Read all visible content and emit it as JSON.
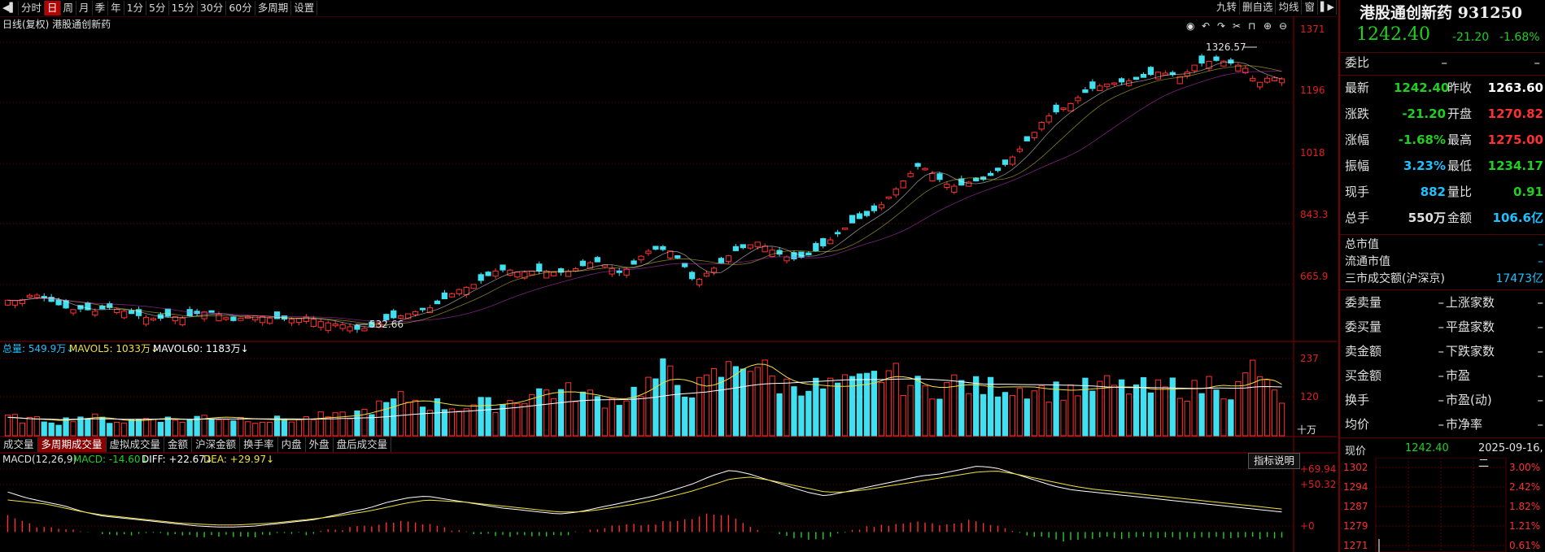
{
  "toolbar": {
    "left": [
      "分时",
      "日",
      "周",
      "月",
      "季",
      "年",
      "1分",
      "5分",
      "15分",
      "30分",
      "60分",
      "多周期",
      "设置"
    ],
    "active_index": 1,
    "right": [
      "九转",
      "删自选",
      "均线",
      "窗"
    ]
  },
  "main": {
    "title": "日线(复权)  港股通创新药",
    "price_axis": [
      "1371",
      "1196",
      "1018",
      "843.3",
      "665.9"
    ],
    "high_label": "1326.57",
    "low_label": "532.66"
  },
  "volume": {
    "legend_total": "总量: 549.9万↓",
    "legend_mavol5": "MAVOL5: 1033万↓",
    "legend_mavol60": "MAVOL60: 1183万↓",
    "axis": [
      "237",
      "120"
    ],
    "unit": "十万"
  },
  "subtabs": {
    "items": [
      "成交量",
      "多周期成交量",
      "虚拟成交量",
      "金额",
      "沪深金额",
      "换手率",
      "内盘",
      "外盘",
      "盘后成交量"
    ],
    "active_index": 1
  },
  "macd": {
    "name": "MACD(12,26,9)",
    "macd": "MACD: -14.60↓",
    "diff": "DIFF: +22.67↓",
    "dea": "DEA: +29.97↓",
    "axis": [
      "+69.94",
      "+50.32",
      "+0"
    ],
    "help": "指标说明"
  },
  "panel": {
    "title": "港股通创新药 931250",
    "price": "1242.40",
    "change": "-21.20",
    "pct": "-1.68%",
    "weibi_label": "委比",
    "weibi_val": "–",
    "weibi_val2": "–",
    "rows": [
      {
        "l1": "最新",
        "v1": "1242.40",
        "c1": "#20d020",
        "l2": "昨收",
        "v2": "1263.60",
        "c2": "#ffffff"
      },
      {
        "l1": "涨跌",
        "v1": "-21.20",
        "c1": "#20d020",
        "l2": "开盘",
        "v2": "1270.82",
        "c2": "#ff3030"
      },
      {
        "l1": "涨幅",
        "v1": "-1.68%",
        "c1": "#20d020",
        "l2": "最高",
        "v2": "1275.00",
        "c2": "#ff3030"
      },
      {
        "l1": "振幅",
        "v1": "3.23%",
        "c1": "#20c0ff",
        "l2": "最低",
        "v2": "1234.17",
        "c2": "#20d020"
      },
      {
        "l1": "现手",
        "v1": "882",
        "c1": "#20c0ff",
        "l2": "量比",
        "v2": "0.91",
        "c2": "#20d020"
      },
      {
        "l1": "总手",
        "v1": "550万",
        "c1": "#e0e0e0",
        "l2": "金额",
        "v2": "106.6亿",
        "c2": "#20c0ff"
      }
    ],
    "mkt": [
      {
        "l": "总市值",
        "v": "–"
      },
      {
        "l": "流通市值",
        "v": "–"
      },
      {
        "l": "三市成交额(沪深京)",
        "v": "17473亿"
      }
    ],
    "grid": [
      {
        "l1": "委卖量",
        "v1": "–",
        "l2": "上涨家数",
        "v2": "–"
      },
      {
        "l1": "委买量",
        "v1": "–",
        "l2": "平盘家数",
        "v2": "–"
      },
      {
        "l1": "卖金额",
        "v1": "–",
        "l2": "下跌家数",
        "v2": "–"
      },
      {
        "l1": "买金额",
        "v1": "–",
        "l2": "市盈",
        "v2": "–"
      },
      {
        "l1": "换手",
        "v1": "–",
        "l2": "市盈(动)",
        "v2": "–"
      },
      {
        "l1": "均价",
        "v1": "–",
        "l2": "市净率",
        "v2": "–"
      }
    ],
    "now_label": "现价",
    "now_val": "1242.40",
    "date": "2025-09-16,二",
    "mini_left": [
      "1302",
      "1294",
      "1287",
      "1279",
      "1271"
    ],
    "mini_right": [
      "3.00%",
      "2.42%",
      "1.82%",
      "1.21%",
      "0.61%"
    ]
  },
  "chart_data": {
    "type": "candlestick",
    "title": "日线(复权) 港股通创新药",
    "y_range": [
      500,
      1400
    ],
    "volume_range": [
      0,
      237
    ],
    "volume_unit": "十万",
    "macd_range": [
      -20,
      80
    ],
    "high_label_value": 1326.57,
    "low_label_value": 532.66,
    "close_anchors": [
      620,
      618,
      640,
      625,
      608,
      592,
      595,
      588,
      600,
      592,
      580,
      570,
      565,
      575,
      568,
      580,
      588,
      578,
      560,
      572,
      575,
      568,
      565,
      565,
      572,
      558,
      552,
      548,
      535,
      540,
      560,
      570,
      580,
      590,
      600,
      625,
      650,
      660,
      680,
      705,
      710,
      700,
      705,
      705,
      700,
      705,
      720,
      735,
      720,
      700,
      720,
      760,
      770,
      765,
      730,
      670,
      700,
      725,
      760,
      775,
      790,
      770,
      750,
      740,
      750,
      770,
      800,
      830,
      855,
      870,
      900,
      940,
      980,
      1015,
      990,
      960,
      950,
      965,
      970,
      990,
      1020,
      1060,
      1100,
      1150,
      1170,
      1190,
      1220,
      1240,
      1250,
      1255,
      1260,
      1270,
      1285,
      1280,
      1270,
      1305,
      1315,
      1320,
      1310,
      1300,
      1250,
      1270,
      1265
    ],
    "volume_anchors": [
      55,
      50,
      45,
      50,
      40,
      55,
      58,
      50,
      45,
      42,
      48,
      55,
      50,
      45,
      48,
      60,
      55,
      50,
      52,
      48,
      45,
      50,
      48,
      52,
      58,
      55,
      62,
      70,
      85,
      92,
      110,
      105,
      95,
      92,
      85,
      88,
      95,
      90,
      100,
      112,
      125,
      135,
      128,
      130,
      120,
      110,
      105,
      115,
      140,
      160,
      190,
      155,
      140,
      145,
      180,
      195,
      230,
      215,
      175,
      145,
      160,
      150,
      140,
      152,
      148,
      155,
      170,
      195,
      160,
      150,
      135,
      145,
      160,
      150,
      140,
      145,
      150,
      140,
      148,
      130,
      135,
      140,
      138,
      145,
      150,
      140,
      145,
      132,
      138,
      150,
      130,
      145,
      170,
      125,
      150,
      220,
      130,
      110
    ],
    "macd_diff_anchors": [
      40,
      34,
      30,
      26,
      20,
      16,
      14,
      12,
      10,
      8,
      6,
      5,
      5,
      6,
      8,
      10,
      12,
      16,
      20,
      24,
      30,
      34,
      36,
      33,
      30,
      27,
      24,
      22,
      20,
      18,
      20,
      24,
      28,
      32,
      36,
      42,
      48,
      56,
      62,
      58,
      52,
      46,
      40,
      36,
      40,
      44,
      48,
      52,
      56,
      58,
      62,
      66,
      64,
      58,
      52,
      46,
      42,
      40,
      38,
      36,
      34,
      32,
      30,
      28,
      26,
      24,
      22,
      20
    ],
    "macd_dea_anchors": [
      32,
      30,
      28,
      24,
      20,
      17,
      15,
      13,
      11,
      9,
      8,
      7,
      7,
      8,
      9,
      11,
      13,
      15,
      18,
      21,
      25,
      29,
      32,
      31,
      30,
      28,
      26,
      24,
      22,
      20,
      20,
      22,
      25,
      28,
      32,
      36,
      41,
      47,
      53,
      55,
      52,
      48,
      44,
      40,
      40,
      42,
      45,
      48,
      51,
      54,
      57,
      60,
      61,
      58,
      54,
      50,
      46,
      43,
      41,
      39,
      37,
      35,
      33,
      31,
      29,
      27,
      25,
      23
    ]
  }
}
